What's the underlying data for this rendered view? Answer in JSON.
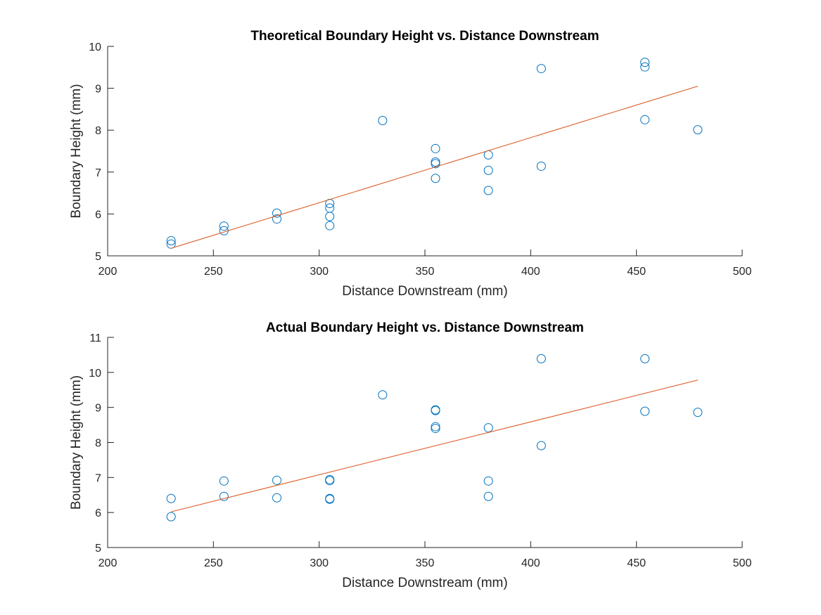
{
  "colors": {
    "points": "#0072BD",
    "fit_line": "#D95319",
    "axis": "#262626"
  },
  "chart_data": [
    {
      "type": "scatter",
      "title": "Theoretical Boundary Height vs. Distance Downstream",
      "xlabel": "Distance Downstream (mm)",
      "ylabel": "Boundary Height (mm)",
      "xlim": [
        200,
        500
      ],
      "ylim": [
        5,
        10
      ],
      "xticks": [
        200,
        250,
        300,
        350,
        400,
        450,
        500
      ],
      "yticks": [
        5,
        6,
        7,
        8,
        9,
        10
      ],
      "grid": false,
      "series": [
        {
          "kind": "points",
          "x": [
            230,
            230,
            255,
            255,
            280,
            280,
            305,
            305,
            305,
            305,
            330,
            355,
            355,
            355,
            355,
            380,
            380,
            380,
            405,
            405,
            454,
            454,
            454,
            479
          ],
          "y": [
            5.36,
            5.28,
            5.71,
            5.6,
            6.02,
            5.88,
            6.25,
            6.14,
            5.94,
            5.72,
            8.23,
            7.56,
            7.24,
            7.2,
            6.85,
            7.41,
            7.04,
            6.56,
            9.47,
            7.14,
            9.62,
            9.51,
            8.25,
            8.01
          ]
        },
        {
          "kind": "fit-line",
          "x": [
            230,
            479
          ],
          "y": [
            5.18,
            9.05
          ]
        }
      ]
    },
    {
      "type": "scatter",
      "title": "Actual Boundary Height vs. Distance Downstream",
      "xlabel": "Distance Downstream (mm)",
      "ylabel": "Boundary Height (mm)",
      "xlim": [
        200,
        500
      ],
      "ylim": [
        5,
        11
      ],
      "xticks": [
        200,
        250,
        300,
        350,
        400,
        450,
        500
      ],
      "yticks": [
        5,
        6,
        7,
        8,
        9,
        10,
        11
      ],
      "grid": false,
      "series": [
        {
          "kind": "points",
          "x": [
            230,
            230,
            255,
            255,
            280,
            280,
            305,
            305,
            305,
            305,
            330,
            355,
            355,
            355,
            355,
            380,
            380,
            380,
            405,
            405,
            454,
            454,
            479
          ],
          "y": [
            6.4,
            5.88,
            6.9,
            6.46,
            6.92,
            6.42,
            6.94,
            6.91,
            6.4,
            6.38,
            9.36,
            8.93,
            8.91,
            8.45,
            8.4,
            8.42,
            6.9,
            6.46,
            10.39,
            7.91,
            10.39,
            8.89,
            8.86
          ]
        },
        {
          "kind": "fit-line",
          "x": [
            230,
            479
          ],
          "y": [
            6.02,
            9.78
          ]
        }
      ]
    }
  ]
}
